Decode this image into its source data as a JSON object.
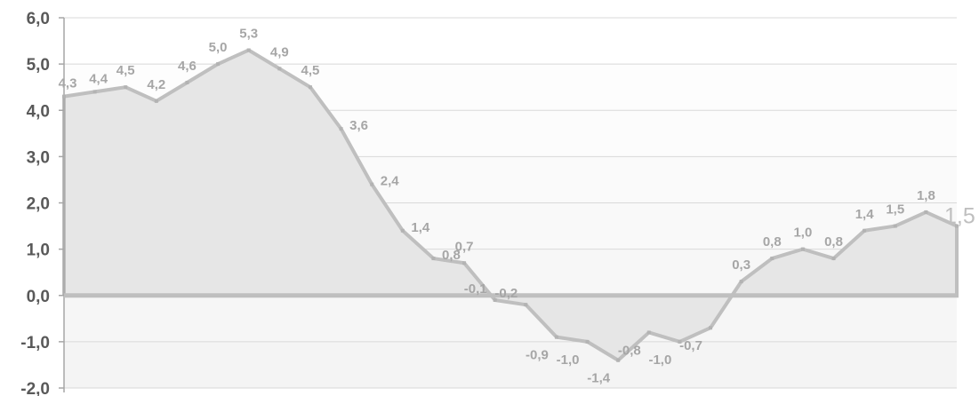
{
  "chart_data": {
    "type": "area",
    "title": "",
    "xlabel": "",
    "ylabel": "",
    "ylim": [
      -2.0,
      6.0
    ],
    "y_ticks": [
      "6,0",
      "5,0",
      "4,0",
      "3,0",
      "2,0",
      "1,0",
      "0,0",
      "-1,0",
      "-2,0"
    ],
    "grid": true,
    "decimal_separator": ",",
    "colors": {
      "line": "#bfbfbf",
      "fill": "#e6e6e6",
      "labels": "#a6a6a6",
      "axis_text": "#595959",
      "zero_line": "#bfbfbf"
    },
    "values": [
      4.3,
      4.4,
      4.5,
      4.2,
      4.6,
      5.0,
      5.3,
      4.9,
      4.5,
      3.6,
      2.4,
      1.4,
      0.8,
      0.7,
      -0.1,
      -0.2,
      -0.9,
      -1.0,
      -1.4,
      -0.8,
      -1.0,
      -0.7,
      0.3,
      0.8,
      1.0,
      0.8,
      1.4,
      1.5,
      1.8,
      1.5
    ]
  }
}
